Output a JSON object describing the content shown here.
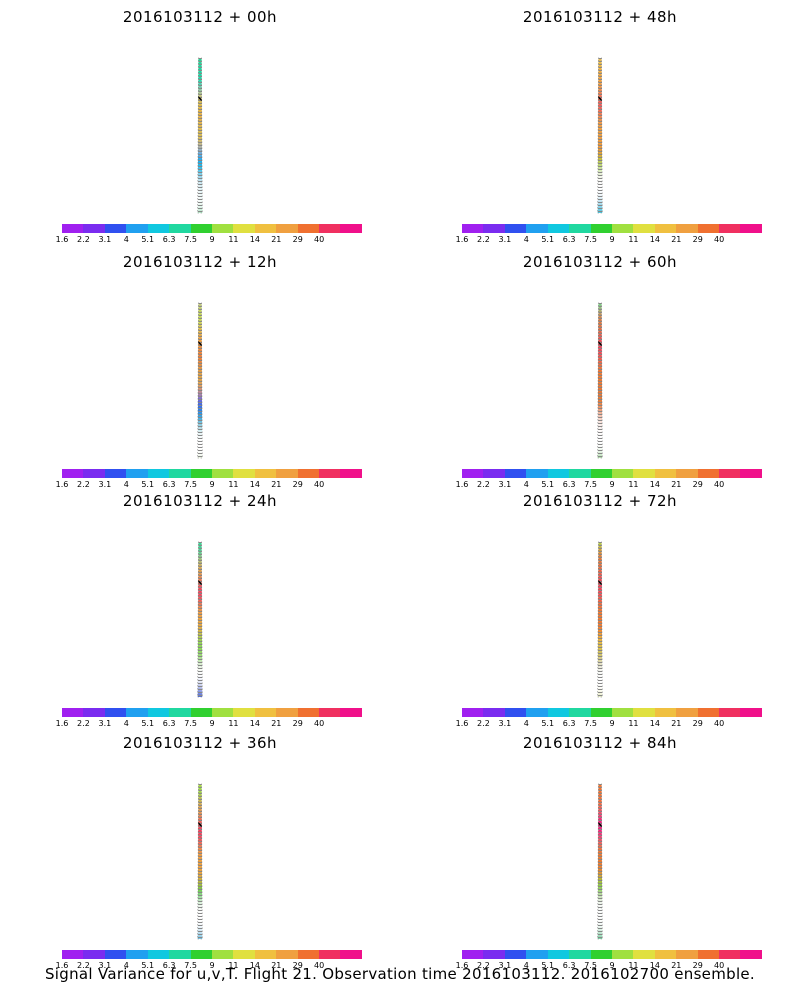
{
  "panels": [
    {
      "title": "2016103112 + 00h",
      "intensity": 0.15,
      "hot": "alaska-core"
    },
    {
      "title": "2016103112 + 48h",
      "intensity": 0.7,
      "hot": "broad"
    },
    {
      "title": "2016103112 + 12h",
      "intensity": 0.35,
      "hot": "alaska"
    },
    {
      "title": "2016103112 + 60h",
      "intensity": 0.75,
      "hot": "broad"
    },
    {
      "title": "2016103112 + 24h",
      "intensity": 0.5,
      "hot": "central"
    },
    {
      "title": "2016103112 + 72h",
      "intensity": 0.8,
      "hot": "broad"
    },
    {
      "title": "2016103112 + 36h",
      "intensity": 0.6,
      "hot": "central"
    },
    {
      "title": "2016103112 + 84h",
      "intensity": 0.9,
      "hot": "broad"
    }
  ],
  "colorbar": {
    "labels": [
      "1.6",
      "2.2",
      "3.1",
      "4",
      "5.1",
      "6.3",
      "7.5",
      "9",
      "11",
      "14",
      "21",
      "29",
      "40"
    ],
    "colors": [
      "#a020f0",
      "#7a2cf0",
      "#3050f0",
      "#20a0f0",
      "#10c8e0",
      "#20d8a0",
      "#30d030",
      "#a0e040",
      "#e0e040",
      "#f0c040",
      "#f0a040",
      "#f07030",
      "#f03060",
      "#f0108a"
    ]
  },
  "footer": "Signal Variance for u,v,T. Flight 21. Observation time 2016103112. 2016102700 ensemble."
}
